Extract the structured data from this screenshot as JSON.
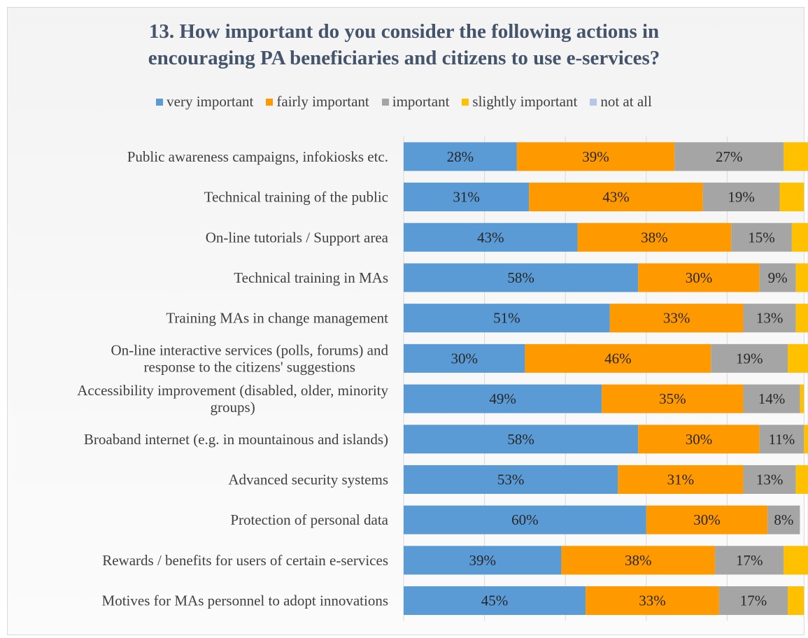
{
  "chart_data": {
    "type": "bar",
    "orientation": "horizontal",
    "stacked": true,
    "title": "13. How important do you consider the following actions in encouraging PA beneficiaries and citizens to use e-services?",
    "title_lines": [
      "13. How important do you consider the following actions in",
      "encouraging PA beneficiaries and citizens to use e-services?"
    ],
    "legend_position": "top",
    "grid": true,
    "xlim": [
      0,
      100
    ],
    "categories": [
      "Public awareness campaigns, infokiosks etc.",
      "Technical training of the public",
      "On-line tutorials / Support area",
      "Technical training in MAs",
      "Training MAs in change management",
      "On-line interactive services (polls, forums) and response to the citizens' suggestions",
      "Accessibility improvement (disabled, older, minority groups)",
      "Broaband internet (e.g. in mountainous and islands)",
      "Advanced security systems",
      "Protection of personal data",
      "Rewards / benefits for users of certain e-services",
      "Motives for MAs personnel to adopt innovations"
    ],
    "category_lines": [
      [
        "Public awareness campaigns, infokiosks etc."
      ],
      [
        "Technical training of the public"
      ],
      [
        "On-line tutorials / Support area"
      ],
      [
        "Technical training in MAs"
      ],
      [
        "Training MAs in change management"
      ],
      [
        "On-line interactive services (polls, forums) and",
        "response to the citizens' suggestions"
      ],
      [
        "Accessibility improvement (disabled, older, minority",
        "groups)"
      ],
      [
        "Broaband internet (e.g. in mountainous and islands)"
      ],
      [
        "Advanced security systems"
      ],
      [
        "Protection of personal data"
      ],
      [
        "Rewards / benefits for users of certain e-services"
      ],
      [
        "Motives for MAs personnel to adopt innovations"
      ]
    ],
    "series": [
      {
        "name": "very important",
        "color": "#5b9bd5",
        "values": [
          28,
          31,
          43,
          58,
          51,
          30,
          49,
          58,
          53,
          60,
          39,
          45
        ]
      },
      {
        "name": "fairly important",
        "color": "#ff9900",
        "values": [
          39,
          43,
          38,
          30,
          33,
          46,
          35,
          30,
          31,
          30,
          38,
          33
        ]
      },
      {
        "name": "important",
        "color": "#a5a5a5",
        "values": [
          27,
          19,
          15,
          9,
          13,
          19,
          14,
          11,
          13,
          8,
          17,
          17
        ]
      },
      {
        "name": "slightly important",
        "color": "#ffc000",
        "values": [
          6,
          6,
          4,
          3,
          3,
          5,
          1,
          1,
          3,
          0,
          6,
          4
        ]
      },
      {
        "name": "not at all",
        "color": "#b4c7e7",
        "values": [
          0,
          0,
          0,
          0,
          0,
          0,
          0,
          0,
          0,
          0,
          0,
          0
        ]
      }
    ],
    "labeled_series": [
      "very important",
      "fairly important",
      "important"
    ],
    "value_suffix": "%"
  }
}
